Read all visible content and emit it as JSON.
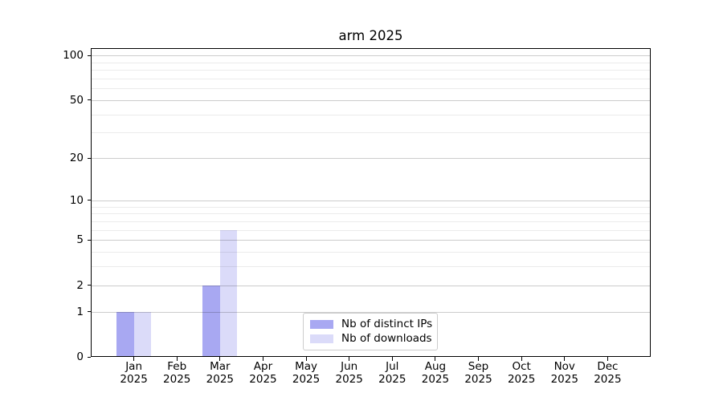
{
  "chart_data": {
    "type": "bar",
    "title": "arm 2025",
    "x_tick_months": [
      "Jan",
      "Feb",
      "Mar",
      "Apr",
      "May",
      "Jun",
      "Jul",
      "Aug",
      "Sep",
      "Oct",
      "Nov",
      "Dec"
    ],
    "x_tick_year": "2025",
    "y_scale": "log1p",
    "ylim": [
      0,
      113
    ],
    "y_major_ticks": [
      0,
      1,
      2,
      5,
      10,
      20,
      50,
      100
    ],
    "y_minor_gridlines": [
      3,
      4,
      6,
      7,
      8,
      9,
      30,
      40,
      60,
      70,
      80,
      90
    ],
    "grid": "horizontal",
    "legend_position": "lower-center",
    "series": [
      {
        "name": "Nb of distinct IPs",
        "color": "#a8a8f2",
        "values": [
          1,
          0,
          2,
          0,
          0,
          0,
          0,
          0,
          0,
          0,
          0,
          0
        ]
      },
      {
        "name": "Nb of downloads",
        "color": "#dbdbf9",
        "values": [
          1,
          0,
          6,
          0,
          0,
          0,
          0,
          0,
          0,
          0,
          0,
          0
        ]
      }
    ]
  },
  "colors": {
    "background": "#ffffff",
    "axis": "#000000",
    "grid_major": "#cccccc",
    "grid_minor": "#ebebeb",
    "legend_border": "#cccccc",
    "text": "#000000"
  }
}
